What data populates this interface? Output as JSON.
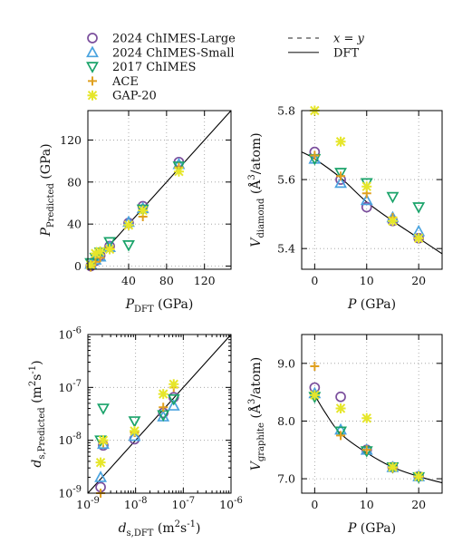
{
  "legend": {
    "items": [
      {
        "key": "large",
        "label": "2024 ChIMES-Large",
        "marker": "circle",
        "color": "#7b4f9d"
      },
      {
        "key": "small",
        "label": "2024 ChIMES-Small",
        "marker": "triangle-up",
        "color": "#4aa3df"
      },
      {
        "key": "c2017",
        "label": "2017 ChIMES",
        "marker": "triangle-down",
        "color": "#1aa36a"
      },
      {
        "key": "ace",
        "label": "ACE",
        "marker": "plus",
        "color": "#e0a020"
      },
      {
        "key": "gap",
        "label": "GAP-20",
        "marker": "star",
        "color": "#e6e62a"
      }
    ],
    "lines": [
      {
        "key": "xy",
        "label": "x = y",
        "style": "dashed"
      },
      {
        "key": "dft",
        "label": "DFT",
        "style": "solid"
      }
    ]
  },
  "chart_data": [
    {
      "id": "pressure",
      "type": "scatter",
      "xlabel": "PDFT (GPa)",
      "ylabel": "PPredicted (GPa)",
      "xlim": [
        -3,
        148
      ],
      "ylim": [
        -3,
        148
      ],
      "xticks": [
        40,
        80,
        120
      ],
      "yticks": [
        0,
        40,
        80,
        120
      ],
      "grid": true,
      "reference_line": "x = y",
      "series": [
        {
          "name": "2024 ChIMES-Large",
          "x": [
            0,
            5,
            10,
            20,
            40,
            55,
            93
          ],
          "y": [
            0,
            5,
            10,
            19,
            41,
            57,
            99
          ]
        },
        {
          "name": "2024 ChIMES-Small",
          "x": [
            0,
            5,
            10,
            20,
            40,
            55,
            93
          ],
          "y": [
            2,
            6,
            9,
            18,
            42,
            55,
            97
          ]
        },
        {
          "name": "2017 ChIMES",
          "x": [
            0,
            5,
            10,
            20,
            40,
            55,
            93
          ],
          "y": [
            3,
            8,
            13,
            23,
            20,
            54,
            95
          ]
        },
        {
          "name": "ACE",
          "x": [
            0,
            5,
            10,
            20,
            40,
            55,
            93
          ],
          "y": [
            -1,
            4,
            8,
            17,
            39,
            47,
            94
          ]
        },
        {
          "name": "GAP-20",
          "x": [
            0,
            5,
            10,
            20,
            40,
            55,
            93
          ],
          "y": [
            1,
            12,
            14,
            16,
            39,
            53,
            90
          ]
        }
      ]
    },
    {
      "id": "v-diamond",
      "type": "scatter",
      "xlabel": "P (GPa)",
      "ylabel": "Vdiamond (Å3/atom)",
      "xlim": [
        -2.5,
        24.5
      ],
      "ylim": [
        5.34,
        5.8
      ],
      "xticks": [
        0,
        10,
        20
      ],
      "yticks": [
        5.4,
        5.6,
        5.8
      ],
      "grid": true,
      "dft_curve": {
        "x": [
          -2.5,
          0,
          5,
          10,
          15,
          20,
          24.5
        ],
        "y": [
          5.68,
          5.66,
          5.605,
          5.535,
          5.48,
          5.43,
          5.385
        ]
      },
      "series": [
        {
          "name": "2024 ChIMES-Large",
          "x": [
            0,
            5,
            10,
            15,
            20
          ],
          "y": [
            5.68,
            5.6,
            5.52,
            5.48,
            5.43
          ]
        },
        {
          "name": "2024 ChIMES-Small",
          "x": [
            0,
            5,
            10,
            15,
            20
          ],
          "y": [
            5.66,
            5.59,
            5.54,
            5.49,
            5.45
          ]
        },
        {
          "name": "2017 ChIMES",
          "x": [
            0,
            5,
            10,
            15,
            20
          ],
          "y": [
            5.66,
            5.62,
            5.59,
            5.55,
            5.52
          ]
        },
        {
          "name": "ACE",
          "x": [
            0,
            5,
            10,
            15,
            20
          ],
          "y": [
            5.67,
            5.61,
            5.56,
            5.49,
            5.43
          ]
        },
        {
          "name": "GAP-20",
          "x": [
            0,
            5,
            10,
            15,
            20
          ],
          "y": [
            5.8,
            5.71,
            5.58,
            5.48,
            5.43
          ]
        }
      ]
    },
    {
      "id": "diffusion",
      "type": "scatter",
      "xscale": "log",
      "yscale": "log",
      "xlabel": "ds,DFT (m2s-1)",
      "ylabel": "ds,Predicted (m2s-1)",
      "xlim": [
        1e-09,
        1e-06
      ],
      "ylim": [
        1e-09,
        1e-06
      ],
      "xtick_labels": [
        "10-9",
        "10-8",
        "10-7",
        "10-6"
      ],
      "ytick_labels": [
        "10-9",
        "10-8",
        "10-7",
        "10-6"
      ],
      "grid": true,
      "reference_line": "x = y",
      "series": [
        {
          "name": "2024 ChIMES-Large",
          "x": [
            1.85e-09,
            2.1e-09,
            9.5e-09,
            3.8e-08,
            6.3e-08
          ],
          "y": [
            1.3e-09,
            8e-09,
            1.05e-08,
            3.3e-08,
            6.5e-08
          ]
        },
        {
          "name": "2024 ChIMES-Small",
          "x": [
            1.85e-09,
            2.1e-09,
            9.5e-09,
            3.8e-08,
            6.3e-08
          ],
          "y": [
            2e-09,
            8.5e-09,
            1.2e-08,
            2.8e-08,
            4.5e-08
          ]
        },
        {
          "name": "2017 ChIMES",
          "x": [
            1.85e-09,
            2.1e-09,
            9.5e-09,
            3.8e-08,
            6.3e-08
          ],
          "y": [
            1e-08,
            4e-08,
            2.3e-08,
            3e-08,
            6e-08
          ]
        },
        {
          "name": "ACE",
          "x": [
            1.85e-09,
            2.1e-09,
            9.5e-09,
            3.8e-08,
            6.3e-08
          ],
          "y": [
            1e-09,
            9e-09,
            1.4e-08,
            4.2e-08,
            1e-07
          ]
        },
        {
          "name": "GAP-20",
          "x": [
            1.85e-09,
            2.1e-09,
            9.5e-09,
            3.8e-08,
            6.3e-08
          ],
          "y": [
            3.8e-09,
            1e-08,
            1.5e-08,
            7.5e-08,
            1.15e-07
          ]
        }
      ]
    },
    {
      "id": "v-graphite",
      "type": "scatter",
      "xlabel": "P (GPa)",
      "ylabel": "Vgraphite (Å3/atom)",
      "xlim": [
        -2.5,
        24.5
      ],
      "ylim": [
        6.75,
        9.5
      ],
      "xticks": [
        0,
        10,
        20
      ],
      "yticks": [
        7.0,
        8.0,
        9.0
      ],
      "ytick_labels": [
        "7.0",
        "8.0",
        "9.0"
      ],
      "grid": true,
      "dft_curve": {
        "x": [
          0,
          2,
          5,
          10,
          15,
          20,
          24.5
        ],
        "y": [
          8.45,
          8.15,
          7.78,
          7.45,
          7.2,
          7.04,
          6.93
        ]
      },
      "series": [
        {
          "name": "2024 ChIMES-Large",
          "x": [
            0,
            5,
            10,
            15,
            20
          ],
          "y": [
            8.58,
            8.42,
            7.5,
            7.2,
            7.04
          ]
        },
        {
          "name": "2024 ChIMES-Small",
          "x": [
            0,
            5,
            10,
            15,
            20
          ],
          "y": [
            8.48,
            7.85,
            7.5,
            7.2,
            7.04
          ]
        },
        {
          "name": "2017 ChIMES",
          "x": [
            0,
            5,
            10,
            15,
            20
          ],
          "y": [
            8.42,
            7.82,
            7.48,
            7.2,
            7.03
          ]
        },
        {
          "name": "ACE",
          "x": [
            0,
            5,
            10,
            15,
            20
          ],
          "y": [
            8.95,
            7.75,
            7.5,
            7.18,
            7.03
          ]
        },
        {
          "name": "GAP-20",
          "x": [
            0,
            5,
            10,
            15,
            20
          ],
          "y": [
            8.45,
            8.22,
            8.05,
            7.2,
            7.04
          ]
        }
      ]
    }
  ]
}
